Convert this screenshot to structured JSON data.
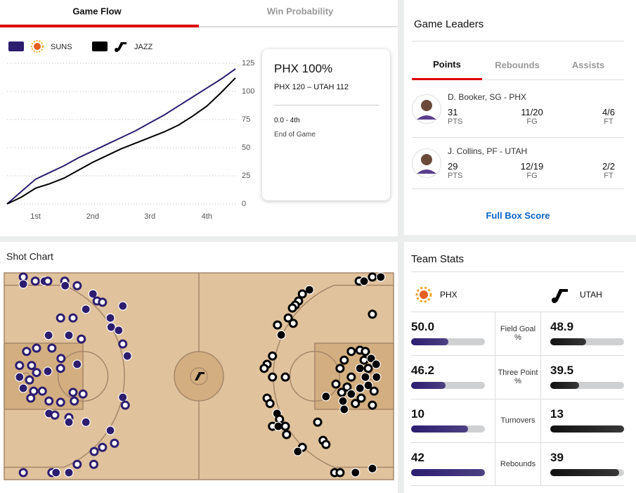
{
  "tabs": [
    "Game Flow",
    "Win Probability"
  ],
  "chart_data": {
    "type": "line",
    "x": [
      0,
      3,
      6,
      9,
      12,
      15,
      18,
      21,
      24,
      27,
      30,
      33,
      36,
      39,
      42,
      45,
      48
    ],
    "series": [
      {
        "name": "SUNS",
        "color": "#2c1d6f",
        "values": [
          0,
          11,
          22,
          28,
          34,
          41,
          47,
          53,
          59,
          65,
          72,
          79,
          87,
          95,
          103,
          111,
          120
        ]
      },
      {
        "name": "JAZZ",
        "color": "#000000",
        "values": [
          0,
          6,
          14,
          18,
          23,
          30,
          37,
          43,
          49,
          54,
          59,
          64,
          70,
          78,
          87,
          99,
          112
        ]
      }
    ],
    "xlim": [
      0,
      48
    ],
    "xticks": [
      {
        "value": 6,
        "label": "1st"
      },
      {
        "value": 18,
        "label": "2nd"
      },
      {
        "value": 30,
        "label": "3rd"
      },
      {
        "value": 42,
        "label": "4th"
      }
    ],
    "ylim": [
      0,
      125
    ],
    "yticks": [
      0,
      25,
      50,
      75,
      100,
      125
    ],
    "grid": true
  },
  "summary": {
    "headline": "PHX 100%",
    "score": "PHX 120 – UTAH 112",
    "clock": "0.0 - 4th",
    "status": "End of Game"
  },
  "game_leaders": {
    "title": "Game Leaders",
    "tabs": [
      "Points",
      "Rebounds",
      "Assists"
    ],
    "players": [
      {
        "name": "D. Booker, SG - PHX",
        "stats": [
          {
            "value": 31,
            "label": "PTS"
          },
          {
            "value": "11/20",
            "label": "FG"
          },
          {
            "value": "4/6",
            "label": "FT"
          }
        ]
      },
      {
        "name": "J. Collins, PF - UTAH",
        "stats": [
          {
            "value": 29,
            "label": "PTS"
          },
          {
            "value": "12/19",
            "label": "FG"
          },
          {
            "value": "2/2",
            "label": "FT"
          }
        ]
      }
    ],
    "link": "Full Box Score"
  },
  "shot_chart": {
    "title": "Shot Chart",
    "teams": [
      {
        "name": "PHX",
        "color": "#2c1d6f",
        "x": [
          4.6,
          4.6,
          7.5,
          9.7,
          10.5,
          14.6,
          14.7,
          17.6,
          21.4,
          22.4,
          23.7,
          19.7,
          28.6,
          13.6,
          16.6,
          25.6,
          25.8,
          27.6,
          10.7,
          15.6,
          18.6,
          7.8,
          11.5,
          5.4,
          28.6,
          29.7,
          13.7,
          17.6,
          3.7,
          6.6,
          10.5,
          7.8,
          13.6,
          3.7,
          6.1,
          4.6,
          7.1,
          9.2,
          16.6,
          19,
          6.4,
          10.8,
          13.6,
          16.9,
          28.6,
          29.2,
          10.8,
          12.2,
          15.6,
          15.6,
          19.7,
          25.6,
          26.6,
          23.7,
          21.7,
          17.6,
          21.6,
          4.6,
          11.5,
          12.5,
          15.6
        ],
        "y": [
          1,
          2.7,
          2,
          2,
          2,
          2,
          3.1,
          3.1,
          5.1,
          6.8,
          7.1,
          8.8,
          8,
          10.9,
          10.9,
          10.9,
          13.1,
          13.9,
          15.1,
          15.1,
          16,
          18.2,
          18.2,
          19,
          17.2,
          20.1,
          20.7,
          22.1,
          22.4,
          22.4,
          23.8,
          24.1,
          23.1,
          25.2,
          25.9,
          27.9,
          28.6,
          28.6,
          28.9,
          29.3,
          30.3,
          31,
          31.3,
          31,
          30.1,
          32,
          34,
          34.4,
          35,
          36.1,
          36.1,
          38.1,
          41.2,
          42.2,
          43.2,
          46.3,
          46.3,
          48.3,
          48.3,
          48.3,
          48.3
        ],
        "made": [
          false,
          true,
          false,
          true,
          false,
          false,
          true,
          false,
          true,
          false,
          false,
          true,
          true,
          false,
          false,
          true,
          true,
          true,
          true,
          true,
          false,
          false,
          false,
          false,
          false,
          true,
          false,
          true,
          false,
          false,
          true,
          false,
          false,
          true,
          false,
          true,
          false,
          false,
          false,
          false,
          false,
          false,
          false,
          false,
          true,
          false,
          true,
          false,
          false,
          true,
          true,
          true,
          false,
          false,
          false,
          false,
          false,
          false,
          false,
          true,
          true
        ]
      },
      {
        "name": "UTAH",
        "color": "#000000",
        "x": [
          85.6,
          86.8,
          88.8,
          90.8,
          73.6,
          71.9,
          71,
          70.2,
          69.5,
          88.8,
          68.5,
          65.9,
          69.7,
          66.8,
          64.7,
          63.4,
          62.7,
          64.7,
          67.8,
          83.7,
          85.8,
          87.1,
          82,
          86.8,
          88.5,
          89.7,
          85.8,
          87.8,
          81,
          89.8,
          83.7,
          87.1,
          80,
          82.7,
          85.8,
          87.8,
          89.2,
          81.4,
          83.7,
          77.6,
          81.7,
          84.7,
          86.1,
          88.8,
          82,
          63.4,
          64.1,
          65.8,
          66.4,
          64.7,
          66.1,
          67.8,
          68.1,
          75.6,
          76.9,
          77.6,
          71.9,
          70.8,
          79.7,
          81,
          84.7,
          88.8
        ],
        "y": [
          2,
          2,
          1,
          1,
          4.1,
          5.1,
          6.8,
          7.8,
          8.5,
          10,
          10.9,
          12.6,
          12.2,
          15,
          20.1,
          22.1,
          23.1,
          25.2,
          25.2,
          19,
          18.7,
          19,
          21.1,
          21.1,
          20.7,
          22.1,
          23.1,
          23.1,
          23.1,
          25.2,
          25.2,
          25.2,
          26.9,
          27.6,
          27.9,
          27.2,
          28.6,
          28.9,
          29.3,
          29.9,
          31,
          31.6,
          30.3,
          32,
          33,
          30.3,
          31.6,
          34,
          35.4,
          37.1,
          37.1,
          37.1,
          39.1,
          36.1,
          40.5,
          41.5,
          42.2,
          43.2,
          48.3,
          48.3,
          48.3,
          47.3
        ],
        "made": [
          false,
          true,
          false,
          true,
          true,
          false,
          false,
          false,
          false,
          false,
          false,
          false,
          false,
          true,
          false,
          false,
          false,
          false,
          false,
          false,
          false,
          false,
          false,
          false,
          true,
          true,
          true,
          false,
          false,
          true,
          false,
          true,
          false,
          false,
          true,
          true,
          false,
          false,
          true,
          true,
          true,
          false,
          false,
          false,
          true,
          false,
          false,
          true,
          false,
          false,
          true,
          false,
          false,
          false,
          false,
          false,
          false,
          true,
          false,
          false,
          true,
          true
        ]
      }
    ]
  },
  "team_stats": {
    "title": "Team Stats",
    "teams": [
      {
        "name": "PHX",
        "color": "#2c1d6f"
      },
      {
        "name": "UTAH",
        "color": "#111111"
      }
    ],
    "rows": [
      {
        "label": "Field Goal %",
        "values": [
          50.0,
          48.9
        ],
        "value_labels": [
          "50.0",
          "48.9"
        ],
        "percent": true
      },
      {
        "label": "Three Point %",
        "values": [
          46.2,
          39.5
        ],
        "percent": true
      },
      {
        "label": "Turnovers",
        "values": [
          10,
          13
        ],
        "percent": false
      },
      {
        "label": "Rebounds",
        "values": [
          42,
          39
        ],
        "percent": false
      }
    ]
  }
}
